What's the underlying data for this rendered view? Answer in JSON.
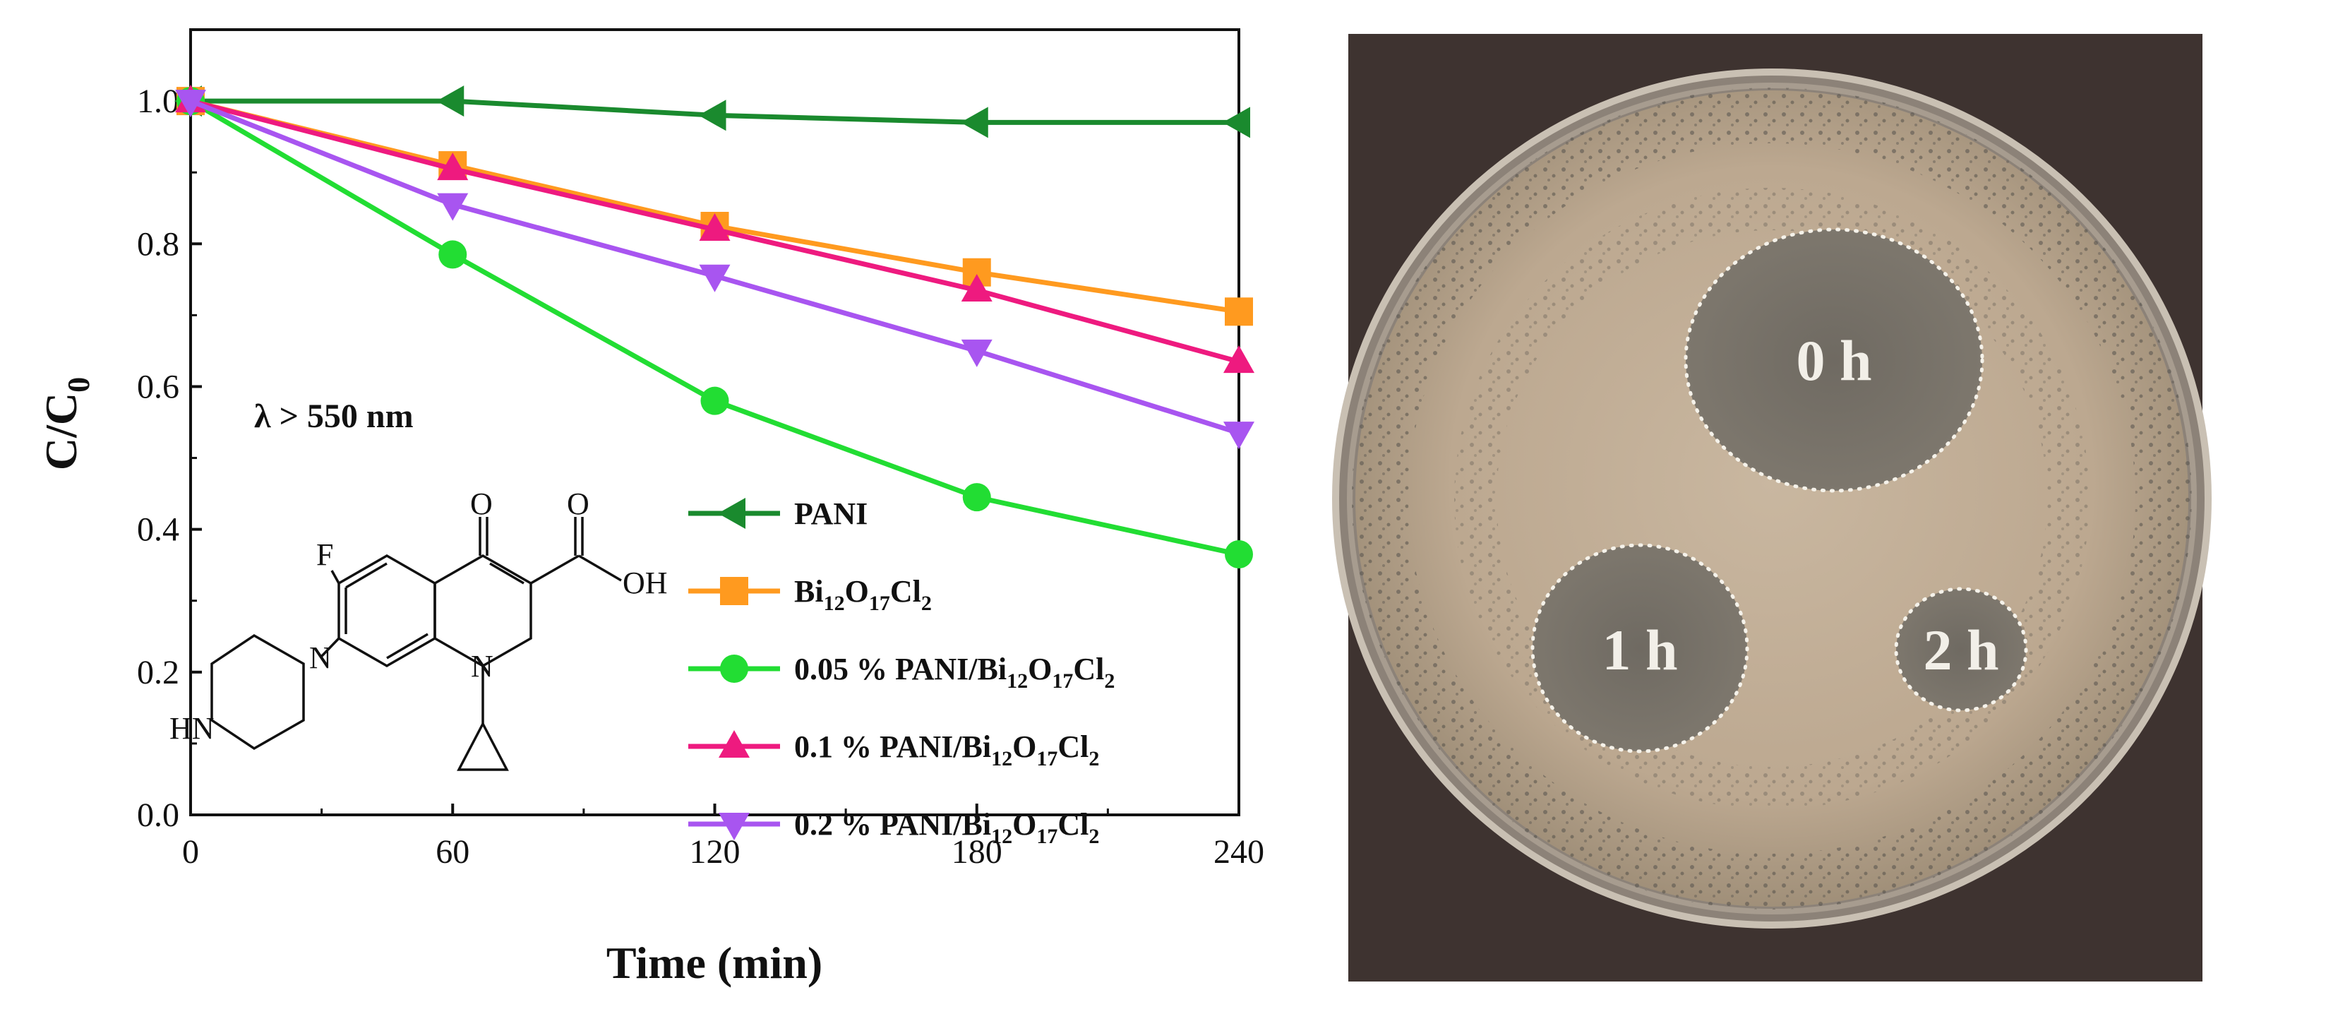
{
  "chart_data": {
    "type": "line",
    "title": "",
    "xlabel": "Time (min)",
    "ylabel_main": "C/C",
    "ylabel_sub": "0",
    "x": [
      0,
      60,
      120,
      180,
      240
    ],
    "xticks": [
      "0",
      "60",
      "120",
      "180",
      "240"
    ],
    "yticks": [
      "0.0",
      "0.2",
      "0.4",
      "0.6",
      "0.8",
      "1.0"
    ],
    "xlim": [
      0,
      240
    ],
    "ylim": [
      0.0,
      1.1
    ],
    "grid": false,
    "legend_position": "bottom-right",
    "annotation": "λ > 550 nm",
    "series": [
      {
        "name": "PANI",
        "label_parts": [
          {
            "t": "PANI"
          }
        ],
        "color": "#1a8a2e",
        "marker": "triangle-left",
        "values": [
          1.0,
          1.0,
          0.98,
          0.97,
          0.97
        ]
      },
      {
        "name": "Bi12O17Cl2",
        "label_parts": [
          {
            "t": "Bi"
          },
          {
            "t": "12",
            "sub": true
          },
          {
            "t": "O"
          },
          {
            "t": "17",
            "sub": true
          },
          {
            "t": "Cl"
          },
          {
            "t": "2",
            "sub": true
          }
        ],
        "color": "#ff9a1f",
        "marker": "square",
        "values": [
          1.0,
          0.91,
          0.825,
          0.76,
          0.705
        ]
      },
      {
        "name": "0.05 % PANI/Bi12O17Cl2",
        "label_parts": [
          {
            "t": "0.05 % PANI/Bi"
          },
          {
            "t": "12",
            "sub": true
          },
          {
            "t": "O"
          },
          {
            "t": "17",
            "sub": true
          },
          {
            "t": "Cl"
          },
          {
            "t": "2",
            "sub": true
          }
        ],
        "color": "#22dd33",
        "marker": "circle",
        "values": [
          1.0,
          0.785,
          0.58,
          0.445,
          0.365
        ]
      },
      {
        "name": "0.1 % PANI/Bi12O17Cl2",
        "label_parts": [
          {
            "t": "0.1 % PANI/Bi"
          },
          {
            "t": "12",
            "sub": true
          },
          {
            "t": "O"
          },
          {
            "t": "17",
            "sub": true
          },
          {
            "t": "Cl"
          },
          {
            "t": "2",
            "sub": true
          }
        ],
        "color": "#ee1a7f",
        "marker": "triangle-up",
        "values": [
          1.0,
          0.905,
          0.82,
          0.735,
          0.635
        ]
      },
      {
        "name": "0.2 % PANI/Bi12O17Cl2",
        "label_parts": [
          {
            "t": "0.2 % PANI/Bi"
          },
          {
            "t": "12",
            "sub": true
          },
          {
            "t": "O"
          },
          {
            "t": "17",
            "sub": true
          },
          {
            "t": "Cl"
          },
          {
            "t": "2",
            "sub": true
          }
        ],
        "color": "#a855f0",
        "marker": "triangle-down",
        "values": [
          1.0,
          0.855,
          0.755,
          0.65,
          0.535
        ]
      }
    ]
  },
  "molecule": {
    "o_top": "O",
    "o_acid": "O",
    "oh": "OH",
    "f": "F",
    "n_ring": "N",
    "n_quinolone": "N",
    "hn": "HN"
  },
  "petri": {
    "zone_0": "0 h",
    "zone_1": "1 h",
    "zone_2": "2 h"
  }
}
